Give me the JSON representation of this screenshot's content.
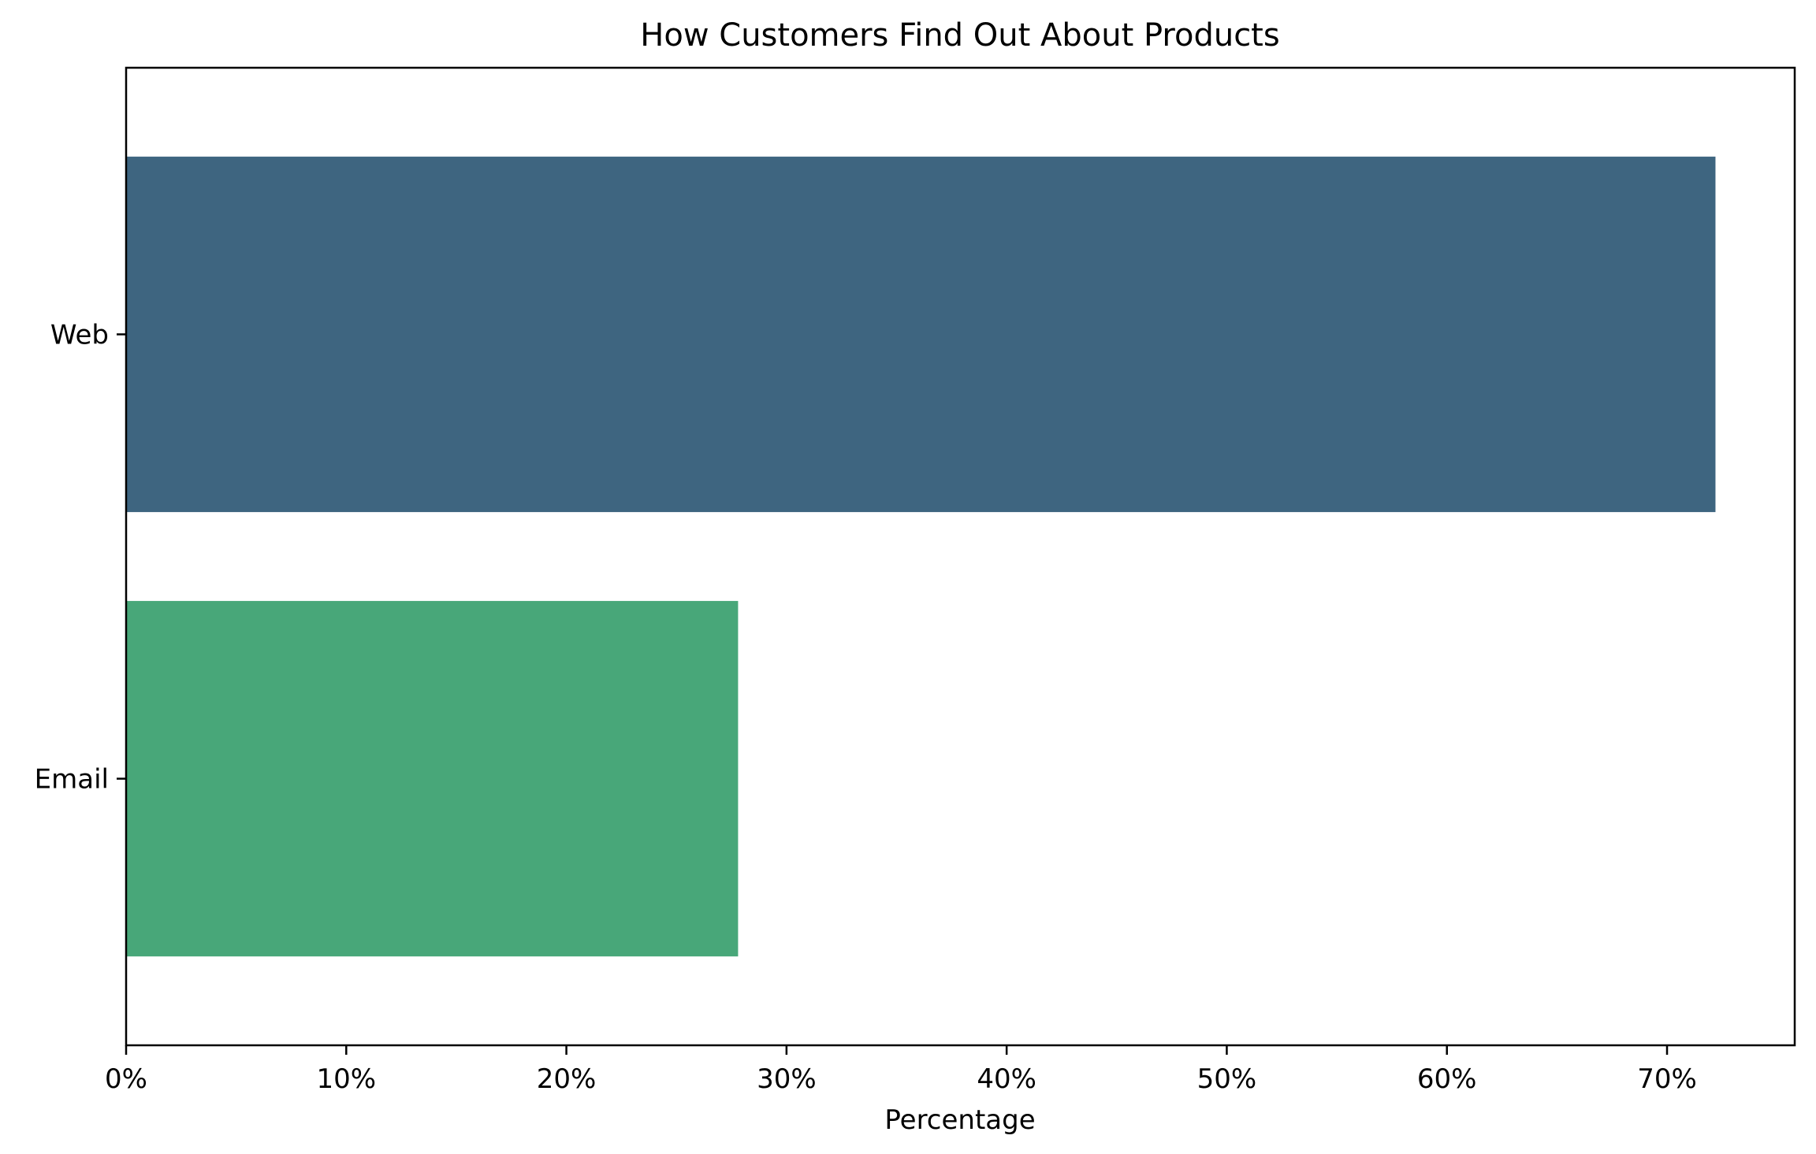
{
  "chart_data": {
    "type": "bar",
    "orientation": "horizontal",
    "title": "How Customers Find Out About Products",
    "xlabel": "Percentage",
    "ylabel": "",
    "categories": [
      "Web",
      "Email"
    ],
    "values": [
      72.2,
      27.8
    ],
    "colors": [
      "#3e6580",
      "#48a779"
    ],
    "xlim": [
      0,
      75.8
    ],
    "xticks": [
      0,
      10,
      20,
      30,
      40,
      50,
      60,
      70
    ],
    "xtick_labels": [
      "0%",
      "10%",
      "20%",
      "30%",
      "40%",
      "50%",
      "60%",
      "70%"
    ],
    "grid": false,
    "legend": "none"
  }
}
